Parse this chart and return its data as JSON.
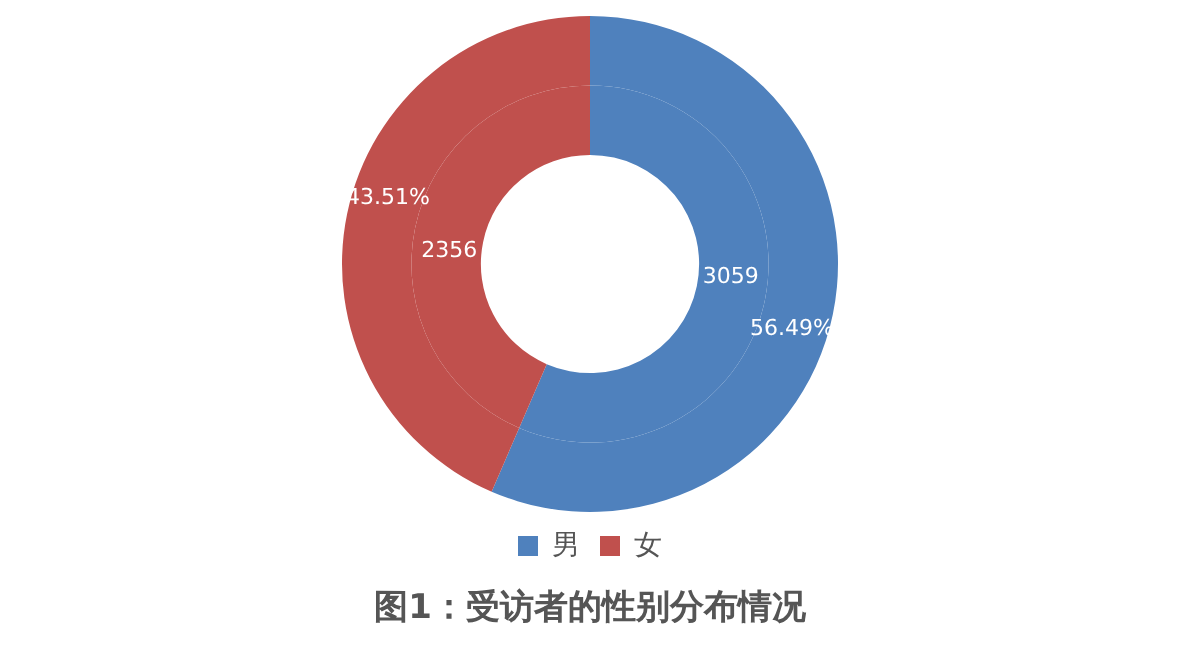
{
  "chart_data": {
    "type": "donut",
    "title": "图1：受访者的性别分布情况",
    "categories": [
      "男",
      "女"
    ],
    "colors": [
      "#4f81bd",
      "#c0504d"
    ],
    "series": [
      {
        "values": [
          56.49,
          43.51
        ],
        "value_labels": [
          "56.49%",
          "43.51%"
        ]
      },
      {
        "values": [
          3059,
          2356
        ],
        "value_labels": [
          "3059",
          "2356"
        ]
      }
    ],
    "legend": "bottom"
  }
}
